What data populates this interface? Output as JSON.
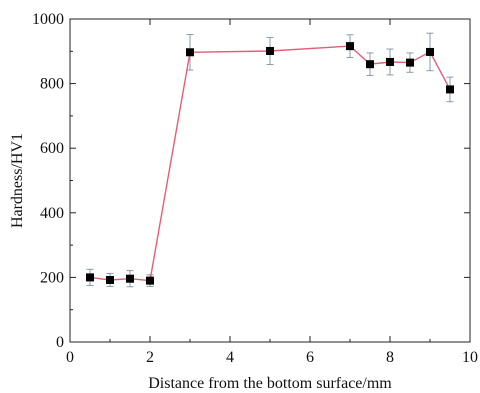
{
  "chart_data": {
    "type": "line",
    "xlabel": "Distance from the bottom surface/mm",
    "ylabel": "Hardness/HV1",
    "xlim": [
      0,
      10
    ],
    "ylim": [
      0,
      1000
    ],
    "xticks": [
      0,
      2,
      4,
      6,
      8,
      10
    ],
    "yticks": [
      0,
      200,
      400,
      600,
      800,
      1000
    ],
    "grid": false,
    "legend": "none",
    "line_color": "#e0607a",
    "marker_color": "#000000",
    "errorbar_color": "#8a9aa8",
    "series": [
      {
        "x": [
          0.5,
          1.0,
          1.5,
          2.0,
          3.0,
          5.0,
          7.0,
          7.5,
          8.0,
          8.5,
          9.0,
          9.5
        ],
        "y": [
          200,
          192,
          196,
          190,
          897,
          901,
          916,
          860,
          867,
          865,
          898,
          782
        ],
        "error": [
          25,
          20,
          25,
          18,
          55,
          42,
          35,
          35,
          40,
          30,
          58,
          38
        ]
      }
    ]
  }
}
